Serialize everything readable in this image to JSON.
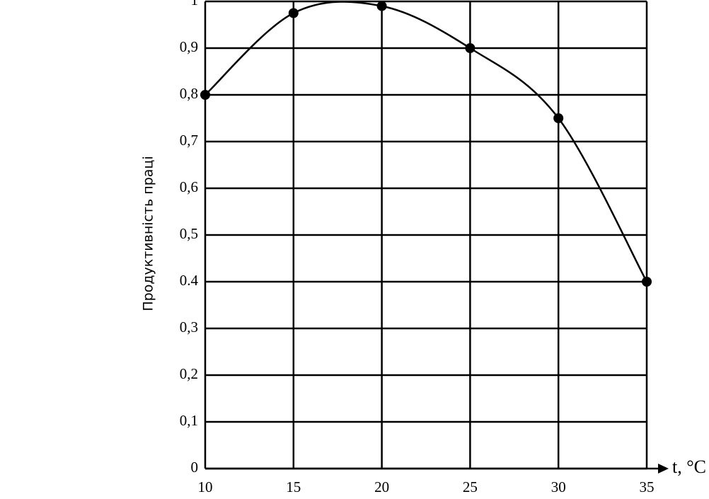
{
  "chart_data": {
    "type": "line",
    "y_label": "Продуктивність праці",
    "x_label": "t, °C",
    "x": [
      10,
      15,
      20,
      25,
      30,
      35
    ],
    "values": [
      0.8,
      0.975,
      0.99,
      0.9,
      0.75,
      0.4
    ],
    "color": "#000000",
    "xlim": [
      10,
      35
    ],
    "xticks": [
      10,
      15,
      20,
      25,
      30,
      35
    ],
    "ylim": [
      0,
      1
    ],
    "yticks": [
      0,
      {
        "value": 0.1,
        "label": "0,1"
      },
      {
        "value": 0.2,
        "label": "0,2"
      },
      {
        "value": 0.3,
        "label": "0,3"
      },
      0.4,
      {
        "value": 0.5,
        "label": "0,5"
      },
      {
        "value": 0.6,
        "label": "0,6"
      },
      {
        "value": 0.7,
        "label": "0,7"
      },
      {
        "value": 0.8,
        "label": "0,8"
      },
      {
        "value": 0.9,
        "label": "0,9"
      },
      1
    ],
    "grid": true
  }
}
